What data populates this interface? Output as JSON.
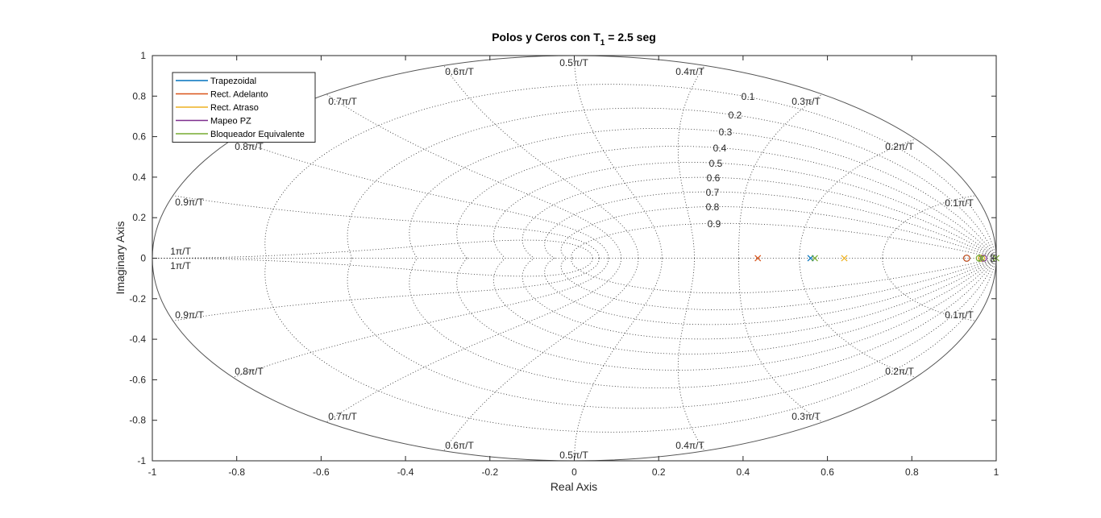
{
  "chart_data": {
    "type": "scatter",
    "title_main": "Polos y Ceros con T",
    "title_sub": "1",
    "title_rest": " = 2.5 seg",
    "xlabel": "Real Axis",
    "ylabel": "Imaginary Axis",
    "xlim": [
      -1,
      1
    ],
    "ylim": [
      -1,
      1
    ],
    "xticks": [
      "-1",
      "-0.8",
      "-0.6",
      "-0.4",
      "-0.2",
      "0",
      "0.2",
      "0.4",
      "0.6",
      "0.8",
      "1"
    ],
    "xtick_values": [
      -1,
      -0.8,
      -0.6,
      -0.4,
      -0.2,
      0,
      0.2,
      0.4,
      0.6,
      0.8,
      1
    ],
    "yticks": [
      "-1",
      "-0.8",
      "-0.6",
      "-0.4",
      "-0.2",
      "0",
      "0.2",
      "0.4",
      "0.6",
      "0.8",
      "1"
    ],
    "ytick_values": [
      -1,
      -0.8,
      -0.6,
      -0.4,
      -0.2,
      0,
      0.2,
      0.4,
      0.6,
      0.8,
      1
    ],
    "grid": "zgrid",
    "legend_position": "top-left",
    "zeta_values": [
      0.1,
      0.2,
      0.3,
      0.4,
      0.5,
      0.6,
      0.7,
      0.8,
      0.9
    ],
    "zeta_labels": [
      "0.1",
      "0.2",
      "0.3",
      "0.4",
      "0.5",
      "0.6",
      "0.7",
      "0.8",
      "0.9"
    ],
    "wn_values": [
      0.1,
      0.2,
      0.3,
      0.4,
      0.5,
      0.6,
      0.7,
      0.8,
      0.9,
      1.0
    ],
    "wn_labels": [
      "0.1π/T",
      "0.2π/T",
      "0.3π/T",
      "0.4π/T",
      "0.5π/T",
      "0.6π/T",
      "0.7π/T",
      "0.8π/T",
      "0.9π/T",
      "1π/T"
    ],
    "series": [
      {
        "name": "Trapezoidal",
        "color": "#0072BD",
        "poles": [
          [
            0.56,
            0
          ]
        ],
        "zeros": [
          [
            0.93,
            0
          ]
        ]
      },
      {
        "name": "Rect. Adelanto",
        "color": "#D95319",
        "poles": [
          [
            0.435,
            0
          ]
        ],
        "zeros": [
          [
            0.93,
            0
          ]
        ]
      },
      {
        "name": "Rect. Atraso",
        "color": "#EDB120",
        "poles": [
          [
            0.64,
            0
          ]
        ],
        "zeros": [
          [
            0.965,
            0
          ]
        ]
      },
      {
        "name": "Mapeo PZ",
        "color": "#7E2F8E",
        "poles": [
          [
            0.965,
            0
          ]
        ],
        "zeros": [
          [
            0.97,
            0
          ]
        ]
      },
      {
        "name": "Bloqueador Equivalente",
        "color": "#77AC30",
        "poles": [
          [
            0.57,
            0
          ],
          [
            0.965,
            0
          ],
          [
            1.0,
            0
          ]
        ],
        "zeros": [
          [
            0.96,
            0
          ]
        ]
      }
    ]
  }
}
